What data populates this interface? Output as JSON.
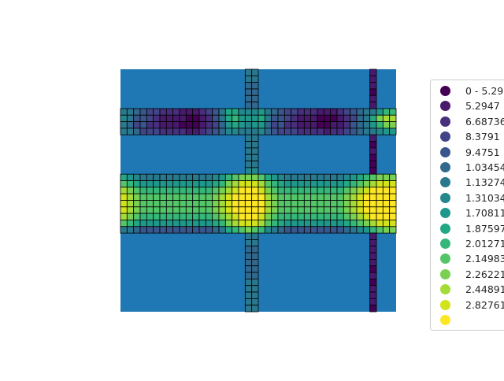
{
  "chart_data": {
    "type": "heatmap",
    "title": "",
    "xlabel": "",
    "ylabel": "",
    "axes_visible": false,
    "grid": false,
    "background_color": "#1f77b4",
    "cell_edge_color": "#000000",
    "legend_position": "right",
    "colormap": "viridis",
    "legend": [
      {
        "label": "0 - 5.29",
        "color": "#440154"
      },
      {
        "label": "5.2947",
        "color": "#481a6c"
      },
      {
        "label": "6.68736",
        "color": "#472f7d"
      },
      {
        "label": "8.3791",
        "color": "#414487"
      },
      {
        "label": "9.4751",
        "color": "#39568c"
      },
      {
        "label": "1.03454",
        "color": "#31688e"
      },
      {
        "label": "1.13274",
        "color": "#2a788e"
      },
      {
        "label": "1.31034",
        "color": "#23888e"
      },
      {
        "label": "1.70811",
        "color": "#1f988b"
      },
      {
        "label": "1.87597",
        "color": "#22a884"
      },
      {
        "label": "2.01271",
        "color": "#35b779"
      },
      {
        "label": "2.14983",
        "color": "#54c568"
      },
      {
        "label": "2.26221",
        "color": "#7ad151"
      },
      {
        "label": "2.44891",
        "color": "#a5db36"
      },
      {
        "label": "2.82761",
        "color": "#d2e21b"
      },
      {
        "label": "",
        "color": "#fde725"
      }
    ],
    "legend_labels_shown": [
      "0 - 5.29",
      "5.2947",
      "6.68736",
      "8.3791",
      "9.4751",
      "1.03454",
      "1.13274",
      "1.31034",
      "1.70811",
      "1.87597",
      "2.01271",
      "2.14983",
      "2.26221",
      "2.44891",
      "2.82761"
    ],
    "grid_cells": {
      "n_cols": 42,
      "n_rows": 37,
      "columns": [
        {
          "x_from": 19,
          "x_to": 20,
          "row_from": 0,
          "row_to": 36,
          "values_by_row": [
            6,
            6,
            5,
            5,
            5,
            5,
            5,
            4,
            5,
            5,
            6,
            6,
            6,
            6,
            6,
            7,
            7,
            7,
            7,
            7,
            7,
            7,
            7,
            6,
            6,
            6,
            6,
            5,
            5,
            5,
            5,
            5,
            6,
            6,
            6,
            6,
            6
          ]
        },
        {
          "x_from": 38,
          "x_to": 38,
          "row_from": 0,
          "row_to": 36,
          "values_by_row": [
            1,
            1,
            1,
            0,
            1,
            1,
            1,
            1,
            1,
            1,
            1,
            0,
            1,
            0,
            0,
            0,
            1,
            1,
            1,
            1,
            1,
            1,
            1,
            1,
            1,
            1,
            1,
            1,
            1,
            1,
            0,
            1,
            0,
            1,
            1,
            1,
            0
          ]
        }
      ],
      "band_1_rows": [
        6,
        9
      ],
      "band_1_values": [
        [
          6,
          6,
          5,
          4,
          3,
          3,
          2,
          2,
          2,
          1,
          1,
          1,
          2,
          3,
          4,
          6,
          9,
          9,
          7,
          7,
          7,
          8,
          6,
          5,
          4,
          3,
          3,
          2,
          2,
          2,
          1,
          1,
          1,
          2,
          3,
          4,
          5,
          6,
          6,
          8,
          10,
          10
        ],
        [
          7,
          6,
          4,
          4,
          3,
          2,
          1,
          1,
          1,
          1,
          0,
          0,
          1,
          2,
          4,
          6,
          9,
          10,
          8,
          8,
          8,
          9,
          6,
          4,
          4,
          3,
          2,
          1,
          1,
          1,
          0,
          0,
          0,
          1,
          2,
          3,
          5,
          6,
          9,
          12,
          13,
          13
        ],
        [
          6,
          5,
          3,
          4,
          2,
          2,
          1,
          1,
          1,
          0,
          0,
          0,
          1,
          2,
          3,
          5,
          8,
          9,
          8,
          7,
          8,
          8,
          5,
          3,
          4,
          2,
          2,
          1,
          1,
          1,
          0,
          0,
          1,
          1,
          2,
          4,
          5,
          6,
          8,
          10,
          12,
          12
        ],
        [
          6,
          6,
          5,
          3,
          3,
          3,
          2,
          2,
          2,
          2,
          1,
          1,
          2,
          3,
          4,
          5,
          7,
          7,
          6,
          6,
          6,
          7,
          5,
          4,
          3,
          3,
          3,
          2,
          2,
          2,
          2,
          1,
          2,
          2,
          3,
          4,
          5,
          6,
          6,
          7,
          8,
          8
        ]
      ],
      "band_2_rows": [
        16,
        24
      ],
      "band_2_values": [
        [
          9,
          8,
          7,
          6,
          6,
          6,
          6,
          6,
          6,
          6,
          6,
          6,
          6,
          6,
          7,
          8,
          10,
          11,
          12,
          12,
          12,
          11,
          9,
          8,
          7,
          6,
          6,
          6,
          6,
          6,
          6,
          6,
          6,
          6,
          7,
          8,
          9,
          10,
          11,
          12,
          12,
          12
        ],
        [
          11,
          10,
          9,
          8,
          8,
          8,
          8,
          8,
          8,
          8,
          8,
          8,
          8,
          8,
          9,
          10,
          12,
          13,
          14,
          14,
          14,
          13,
          11,
          10,
          9,
          8,
          8,
          8,
          8,
          8,
          8,
          8,
          8,
          8,
          9,
          10,
          11,
          12,
          13,
          14,
          14,
          14
        ],
        [
          13,
          12,
          11,
          10,
          10,
          10,
          10,
          10,
          10,
          10,
          10,
          10,
          10,
          10,
          11,
          12,
          13,
          14,
          15,
          15,
          15,
          14,
          12,
          11,
          10,
          10,
          10,
          10,
          10,
          10,
          10,
          10,
          10,
          10,
          11,
          12,
          13,
          14,
          15,
          15,
          15,
          15
        ],
        [
          14,
          13,
          12,
          11,
          11,
          11,
          11,
          11,
          11,
          11,
          11,
          11,
          11,
          11,
          12,
          13,
          14,
          15,
          15,
          15,
          15,
          15,
          13,
          12,
          11,
          11,
          11,
          11,
          11,
          11,
          11,
          11,
          11,
          11,
          12,
          13,
          14,
          15,
          15,
          15,
          15,
          15
        ],
        [
          14,
          13,
          12,
          11,
          11,
          11,
          11,
          11,
          11,
          11,
          11,
          11,
          11,
          11,
          12,
          13,
          14,
          15,
          15,
          15,
          15,
          15,
          13,
          12,
          11,
          11,
          11,
          11,
          11,
          11,
          11,
          11,
          11,
          11,
          12,
          13,
          14,
          15,
          15,
          15,
          15,
          15
        ],
        [
          14,
          13,
          12,
          11,
          11,
          11,
          11,
          11,
          11,
          11,
          11,
          11,
          11,
          11,
          12,
          13,
          14,
          15,
          15,
          15,
          15,
          15,
          13,
          12,
          11,
          11,
          11,
          11,
          11,
          11,
          11,
          11,
          11,
          11,
          12,
          13,
          14,
          15,
          15,
          15,
          15,
          15
        ],
        [
          13,
          12,
          11,
          10,
          10,
          10,
          10,
          10,
          10,
          10,
          10,
          10,
          10,
          10,
          11,
          12,
          13,
          14,
          15,
          15,
          15,
          14,
          12,
          11,
          10,
          10,
          10,
          10,
          10,
          10,
          10,
          10,
          10,
          10,
          11,
          12,
          13,
          14,
          15,
          15,
          15,
          15
        ],
        [
          11,
          10,
          9,
          8,
          8,
          8,
          8,
          8,
          8,
          8,
          8,
          8,
          8,
          8,
          9,
          10,
          12,
          13,
          14,
          14,
          14,
          13,
          11,
          10,
          9,
          8,
          8,
          8,
          8,
          8,
          8,
          8,
          8,
          8,
          9,
          10,
          11,
          12,
          13,
          14,
          14,
          14
        ],
        [
          6,
          6,
          5,
          4,
          4,
          4,
          4,
          4,
          4,
          4,
          4,
          4,
          4,
          4,
          5,
          6,
          9,
          10,
          11,
          12,
          11,
          10,
          7,
          6,
          5,
          4,
          4,
          4,
          4,
          4,
          4,
          4,
          4,
          4,
          5,
          6,
          7,
          8,
          10,
          11,
          12,
          12
        ]
      ]
    }
  }
}
